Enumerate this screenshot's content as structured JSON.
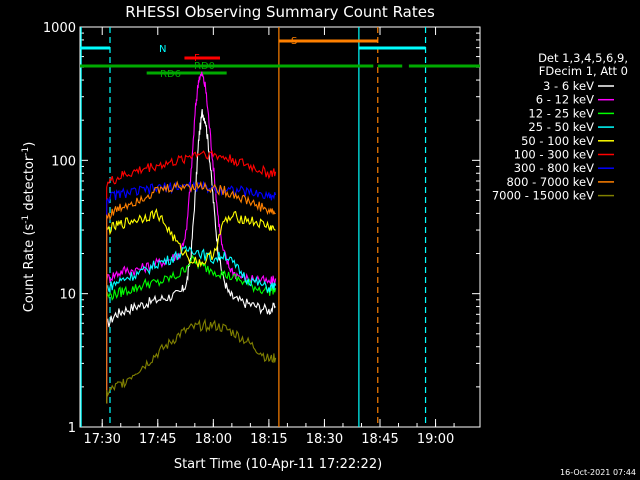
{
  "chart_data": {
    "type": "line",
    "title": "RHESSI Observing Summary Count Rates",
    "xlabel": "Start Time (10-Apr-11 17:22:22)",
    "ylabel_main": "Count Rate (s",
    "ylabel_sup1": "-1",
    "ylabel_mid": " detector",
    "ylabel_sup2": "-1",
    "ylabel_end": ")",
    "y_scale": "log",
    "ylim": [
      1,
      1000
    ],
    "xlim_minutes": [
      17.4,
      19.2
    ],
    "x_ticks": [
      {
        "label": "17:30",
        "value": 17.5
      },
      {
        "label": "17:45",
        "value": 17.75
      },
      {
        "label": "18:00",
        "value": 18.0
      },
      {
        "label": "18:15",
        "value": 18.25
      },
      {
        "label": "18:30",
        "value": 18.5
      },
      {
        "label": "18:45",
        "value": 18.75
      },
      {
        "label": "19:00",
        "value": 19.0
      }
    ],
    "y_ticks": [
      {
        "label": "1",
        "value": 1
      },
      {
        "label": "10",
        "value": 10
      },
      {
        "label": "100",
        "value": 100
      },
      {
        "label": "1000",
        "value": 1000
      }
    ],
    "legend_header": [
      "Det 1,3,4,5,6,9,",
      "FDecim 1, Att 0"
    ],
    "series": [
      {
        "name": "3 - 6 keV",
        "color": "#ffffff",
        "points": [
          [
            17.52,
            5.8
          ],
          [
            17.56,
            7.0
          ],
          [
            17.6,
            7.5
          ],
          [
            17.65,
            8.0
          ],
          [
            17.7,
            8.5
          ],
          [
            17.75,
            9.0
          ],
          [
            17.8,
            9.5
          ],
          [
            17.85,
            10
          ],
          [
            17.88,
            12
          ],
          [
            17.9,
            20
          ],
          [
            17.92,
            60
          ],
          [
            17.935,
            150
          ],
          [
            17.95,
            230
          ],
          [
            17.965,
            200
          ],
          [
            17.98,
            120
          ],
          [
            18.0,
            50
          ],
          [
            18.02,
            22
          ],
          [
            18.04,
            14
          ],
          [
            18.07,
            10
          ],
          [
            18.1,
            9
          ],
          [
            18.15,
            8.5
          ],
          [
            18.2,
            8
          ],
          [
            18.25,
            7.5
          ],
          [
            18.28,
            8
          ]
        ]
      },
      {
        "name": "6 - 12 keV",
        "color": "#ff00ff",
        "points": [
          [
            17.52,
            13
          ],
          [
            17.56,
            14
          ],
          [
            17.6,
            15
          ],
          [
            17.65,
            15
          ],
          [
            17.7,
            16
          ],
          [
            17.75,
            17
          ],
          [
            17.8,
            18
          ],
          [
            17.85,
            20
          ],
          [
            17.88,
            30
          ],
          [
            17.9,
            80
          ],
          [
            17.92,
            250
          ],
          [
            17.935,
            420
          ],
          [
            17.95,
            440
          ],
          [
            17.965,
            350
          ],
          [
            17.98,
            200
          ],
          [
            18.0,
            90
          ],
          [
            18.02,
            40
          ],
          [
            18.04,
            22
          ],
          [
            18.07,
            16
          ],
          [
            18.1,
            14
          ],
          [
            18.15,
            13
          ],
          [
            18.2,
            13
          ],
          [
            18.25,
            12
          ],
          [
            18.28,
            13
          ]
        ]
      },
      {
        "name": "12 - 25 keV",
        "color": "#00ff00",
        "points": [
          [
            17.52,
            9.5
          ],
          [
            17.56,
            10
          ],
          [
            17.6,
            10.5
          ],
          [
            17.65,
            11
          ],
          [
            17.7,
            12
          ],
          [
            17.75,
            12
          ],
          [
            17.8,
            13
          ],
          [
            17.85,
            14
          ],
          [
            17.9,
            18
          ],
          [
            17.95,
            16
          ],
          [
            18.0,
            15
          ],
          [
            18.05,
            14
          ],
          [
            18.1,
            13
          ],
          [
            18.15,
            12
          ],
          [
            18.2,
            11
          ],
          [
            18.25,
            10.5
          ],
          [
            18.28,
            11
          ]
        ]
      },
      {
        "name": "25 - 50 keV",
        "color": "#00ffff",
        "points": [
          [
            17.52,
            11
          ],
          [
            17.56,
            12
          ],
          [
            17.6,
            13
          ],
          [
            17.65,
            14
          ],
          [
            17.7,
            15
          ],
          [
            17.75,
            17
          ],
          [
            17.8,
            18
          ],
          [
            17.85,
            20
          ],
          [
            17.9,
            22
          ],
          [
            17.95,
            20
          ],
          [
            18.0,
            18
          ],
          [
            18.05,
            20
          ],
          [
            18.1,
            16
          ],
          [
            18.15,
            13
          ],
          [
            18.2,
            12
          ],
          [
            18.25,
            11
          ],
          [
            18.28,
            11.5
          ]
        ]
      },
      {
        "name": "50 - 100 keV",
        "color": "#ffff00",
        "points": [
          [
            17.52,
            30
          ],
          [
            17.56,
            32
          ],
          [
            17.6,
            34
          ],
          [
            17.65,
            36
          ],
          [
            17.7,
            38
          ],
          [
            17.75,
            40
          ],
          [
            17.8,
            30
          ],
          [
            17.85,
            22
          ],
          [
            17.9,
            18
          ],
          [
            17.95,
            17
          ],
          [
            18.0,
            20
          ],
          [
            18.05,
            35
          ],
          [
            18.1,
            38
          ],
          [
            18.15,
            36
          ],
          [
            18.2,
            34
          ],
          [
            18.25,
            32
          ],
          [
            18.28,
            30
          ]
        ]
      },
      {
        "name": "100 - 300 keV",
        "color": "#ff0000",
        "points": [
          [
            17.52,
            68
          ],
          [
            17.56,
            72
          ],
          [
            17.6,
            78
          ],
          [
            17.65,
            82
          ],
          [
            17.7,
            88
          ],
          [
            17.75,
            92
          ],
          [
            17.8,
            95
          ],
          [
            17.85,
            100
          ],
          [
            17.9,
            110
          ],
          [
            17.95,
            115
          ],
          [
            18.0,
            110
          ],
          [
            18.05,
            105
          ],
          [
            18.1,
            100
          ],
          [
            18.15,
            92
          ],
          [
            18.2,
            86
          ],
          [
            18.25,
            80
          ],
          [
            18.28,
            82
          ]
        ]
      },
      {
        "name": "300 - 800 keV",
        "color": "#0000ff",
        "points": [
          [
            17.52,
            52
          ],
          [
            17.56,
            55
          ],
          [
            17.6,
            57
          ],
          [
            17.65,
            58
          ],
          [
            17.7,
            60
          ],
          [
            17.75,
            62
          ],
          [
            17.8,
            63
          ],
          [
            17.85,
            64
          ],
          [
            17.9,
            64
          ],
          [
            17.95,
            63
          ],
          [
            18.0,
            62
          ],
          [
            18.05,
            61
          ],
          [
            18.1,
            60
          ],
          [
            18.15,
            58
          ],
          [
            18.2,
            56
          ],
          [
            18.25,
            54
          ],
          [
            18.28,
            55
          ]
        ]
      },
      {
        "name": "800 - 7000 keV",
        "color": "#ff8000",
        "points": [
          [
            17.52,
            38
          ],
          [
            17.56,
            42
          ],
          [
            17.6,
            46
          ],
          [
            17.65,
            50
          ],
          [
            17.7,
            55
          ],
          [
            17.75,
            59
          ],
          [
            17.8,
            62
          ],
          [
            17.85,
            64
          ],
          [
            17.9,
            65
          ],
          [
            17.95,
            64
          ],
          [
            18.0,
            62
          ],
          [
            18.05,
            59
          ],
          [
            18.1,
            55
          ],
          [
            18.15,
            50
          ],
          [
            18.2,
            46
          ],
          [
            18.25,
            42
          ],
          [
            18.28,
            40
          ]
        ]
      },
      {
        "name": "7000 - 15000 keV",
        "color": "#808000",
        "points": [
          [
            17.52,
            1.8
          ],
          [
            17.56,
            2.0
          ],
          [
            17.6,
            2.2
          ],
          [
            17.65,
            2.6
          ],
          [
            17.7,
            3.0
          ],
          [
            17.75,
            3.6
          ],
          [
            17.8,
            4.2
          ],
          [
            17.85,
            5.0
          ],
          [
            17.9,
            5.5
          ],
          [
            17.95,
            5.8
          ],
          [
            18.0,
            5.8
          ],
          [
            18.05,
            5.5
          ],
          [
            18.1,
            5.0
          ],
          [
            18.15,
            4.4
          ],
          [
            18.2,
            3.8
          ],
          [
            18.25,
            3.2
          ],
          [
            18.28,
            3.3
          ]
        ]
      }
    ],
    "annotations": [
      {
        "label": "N",
        "color": "#00ffff"
      },
      {
        "label": "F",
        "color": "#ff0000"
      },
      {
        "label": "RD0",
        "color": "#00aa00"
      },
      {
        "label": "RD6",
        "color": "#00aa00"
      },
      {
        "label": "S",
        "color": "#ff8000"
      }
    ],
    "timestamp": "16-Oct-2021 07:44"
  }
}
